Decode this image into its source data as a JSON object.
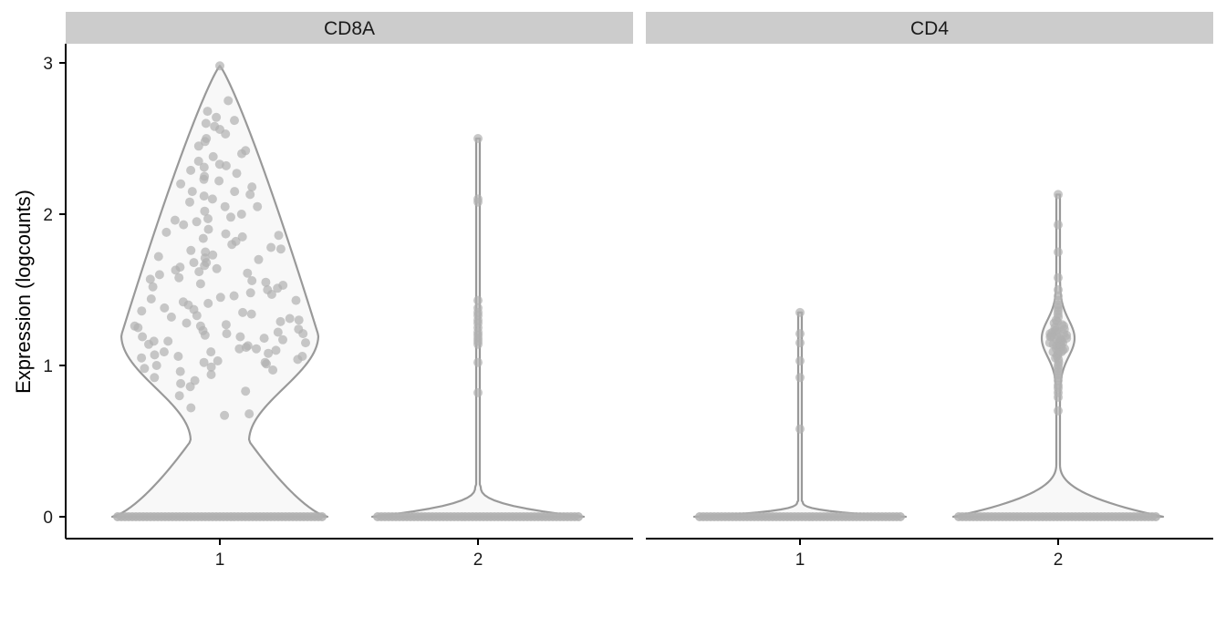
{
  "chart_data": {
    "type": "violin",
    "ylabel": "Expression (logcounts)",
    "ylim": [
      0,
      3
    ],
    "yticks": [
      0,
      1,
      2,
      3
    ],
    "categories": [
      "1",
      "2"
    ],
    "grid": false,
    "legend": "none",
    "colors": {
      "strip_fill": "#cccccc",
      "violin_fill": "#f8f8f8",
      "violin_stroke": "#999999",
      "point": "#b0b0b0",
      "axis": "#000000"
    },
    "panels": [
      {
        "title": "CD8A",
        "groups": [
          {
            "category": "1",
            "max": 2.98,
            "zeros_present": true,
            "points": [
              2.98,
              2.75,
              2.68,
              2.64,
              2.62,
              2.6,
              2.58,
              2.56,
              2.53,
              2.5,
              2.45,
              2.42,
              2.38,
              2.35,
              2.33,
              2.31,
              2.29,
              2.27,
              2.25,
              2.23,
              2.2,
              2.18,
              2.15,
              2.13,
              2.1,
              2.08,
              2.05,
              2.02,
              2.0,
              1.98,
              1.96,
              1.93,
              1.9,
              1.88,
              1.86,
              1.84,
              1.82,
              1.8,
              1.78,
              1.76,
              1.75,
              1.73,
              1.71,
              1.7,
              1.68,
              1.66,
              1.65,
              1.63,
              1.61,
              1.6,
              1.58,
              1.56,
              1.55,
              1.53,
              1.51,
              1.5,
              1.48,
              1.46,
              1.45,
              1.43,
              1.42,
              1.4,
              1.38,
              1.37,
              1.35,
              1.34,
              1.32,
              1.31,
              1.3,
              1.28,
              1.27,
              1.26,
              1.25,
              1.24,
              1.23,
              1.22,
              1.21,
              1.2,
              1.19,
              1.18,
              1.17,
              1.16,
              1.15,
              1.14,
              1.13,
              1.12,
              1.11,
              1.1,
              1.09,
              1.08,
              1.07,
              1.06,
              1.05,
              1.04,
              1.03,
              1.02,
              1.01,
              1.0,
              0.99,
              0.98,
              0.96,
              0.94,
              0.92,
              0.9,
              0.88,
              0.86,
              0.83,
              0.8,
              0.72,
              0.68,
              0.67,
              1.72,
              1.62,
              1.52,
              1.41,
              1.33,
              1.21,
              1.11,
              1.02,
              1.85,
              1.95,
              2.05,
              2.15,
              2.32,
              2.48,
              1.68,
              1.57,
              1.47,
              1.36,
              1.26,
              1.16,
              1.06,
              1.77,
              1.87,
              1.97,
              2.12,
              2.22,
              2.4,
              1.64,
              1.54,
              1.44,
              1.29,
              1.19,
              1.09,
              0.97
            ]
          },
          {
            "category": "2",
            "max": 2.5,
            "zeros_present": true,
            "points": [
              2.5,
              2.1,
              2.08,
              1.43,
              1.38,
              1.35,
              1.33,
              1.3,
              1.28,
              1.25,
              1.22,
              1.2,
              1.18,
              1.16,
              1.14,
              1.02,
              0.82
            ]
          }
        ]
      },
      {
        "title": "CD4",
        "groups": [
          {
            "category": "1",
            "max": 1.35,
            "zeros_present": true,
            "points": [
              1.35,
              1.21,
              1.15,
              1.03,
              0.92,
              0.58
            ]
          },
          {
            "category": "2",
            "max": 2.13,
            "zeros_present": true,
            "points": [
              2.13,
              1.93,
              1.75,
              1.58,
              1.5,
              1.46,
              1.43,
              1.4,
              1.38,
              1.36,
              1.34,
              1.32,
              1.3,
              1.29,
              1.28,
              1.27,
              1.26,
              1.25,
              1.24,
              1.23,
              1.22,
              1.21,
              1.2,
              1.19,
              1.18,
              1.17,
              1.16,
              1.15,
              1.14,
              1.13,
              1.12,
              1.11,
              1.1,
              1.09,
              1.08,
              1.07,
              1.06,
              1.05,
              1.04,
              1.02,
              1.0,
              0.98,
              0.96,
              0.94,
              0.92,
              0.9,
              0.87,
              0.85,
              0.82,
              0.79,
              0.7,
              1.22,
              1.2,
              1.18,
              1.16,
              1.14,
              1.12,
              1.19,
              1.17,
              1.15,
              1.13,
              1.21,
              1.23,
              1.11,
              1.09
            ]
          }
        ]
      }
    ]
  }
}
